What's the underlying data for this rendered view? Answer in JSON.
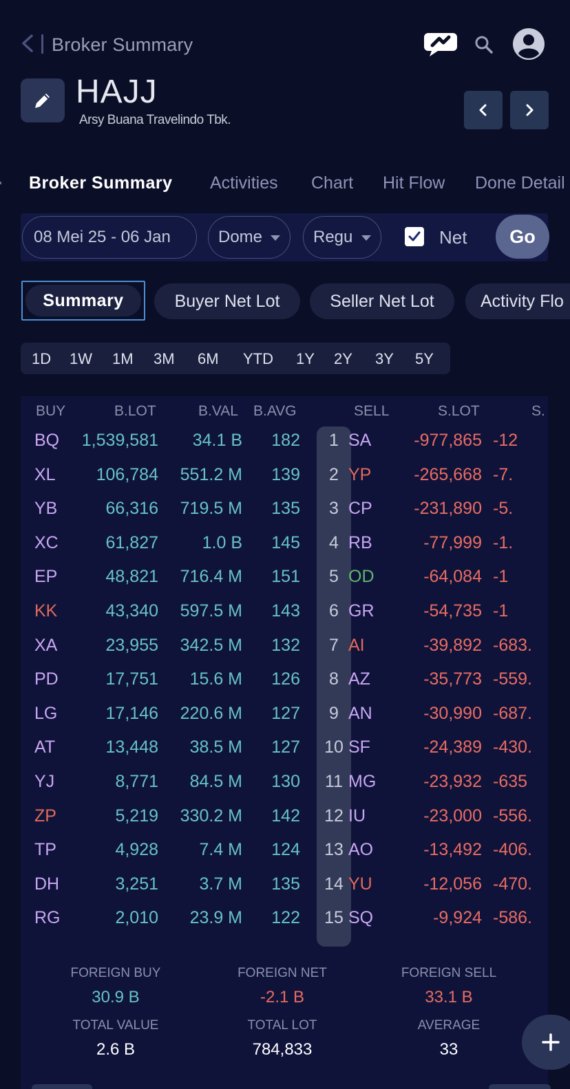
{
  "header": {
    "title": "Broker Summary",
    "ticker": "HAJJ",
    "company": "Arsy Buana Travelindo Tbk."
  },
  "tabs": [
    {
      "label": "Broker Summary",
      "active": true
    },
    {
      "label": "Activities"
    },
    {
      "label": "Chart"
    },
    {
      "label": "Hit Flow"
    },
    {
      "label": "Done Detail"
    }
  ],
  "filters": {
    "date_range": "08 Mei 25 - 06 Jan",
    "market": "Dome",
    "board": "Regu",
    "net_checked": true,
    "net_label": "Net",
    "go_label": "Go"
  },
  "views": [
    {
      "label": "Summary",
      "active": true
    },
    {
      "label": "Buyer Net Lot"
    },
    {
      "label": "Seller Net Lot"
    },
    {
      "label": "Activity Flo"
    }
  ],
  "periods": [
    "1D",
    "1W",
    "1M",
    "3M",
    "6M",
    "YTD",
    "1Y",
    "2Y",
    "3Y",
    "5Y"
  ],
  "table": {
    "columns": {
      "buy": "BUY",
      "blot": "B.LOT",
      "bval": "B.VAL",
      "bavg": "B.AVG",
      "sell": "SELL",
      "slot": "S.LOT",
      "sval": "S."
    },
    "rows": [
      {
        "rank": "1",
        "buy": "BQ",
        "blot": "1,539,581",
        "bval": "34.1 B",
        "bavg": "182",
        "sell": "SA",
        "slot": "-977,865",
        "sval": "-12"
      },
      {
        "rank": "2",
        "buy": "XL",
        "blot": "106,784",
        "bval": "551.2 M",
        "bavg": "139",
        "sell": "YP",
        "slot": "-265,668",
        "sval": "-7."
      },
      {
        "rank": "3",
        "buy": "YB",
        "blot": "66,316",
        "bval": "719.5 M",
        "bavg": "135",
        "sell": "CP",
        "slot": "-231,890",
        "sval": "-5."
      },
      {
        "rank": "4",
        "buy": "XC",
        "blot": "61,827",
        "bval": "1.0 B",
        "bavg": "145",
        "sell": "RB",
        "slot": "-77,999",
        "sval": "-1."
      },
      {
        "rank": "5",
        "buy": "EP",
        "blot": "48,821",
        "bval": "716.4 M",
        "bavg": "151",
        "sell": "OD",
        "slot": "-64,084",
        "sval": "-1"
      },
      {
        "rank": "6",
        "buy": "KK",
        "blot": "43,340",
        "bval": "597.5 M",
        "bavg": "143",
        "sell": "GR",
        "slot": "-54,735",
        "sval": "-1"
      },
      {
        "rank": "7",
        "buy": "XA",
        "blot": "23,955",
        "bval": "342.5 M",
        "bavg": "132",
        "sell": "AI",
        "slot": "-39,892",
        "sval": "-683."
      },
      {
        "rank": "8",
        "buy": "PD",
        "blot": "17,751",
        "bval": "15.6 M",
        "bavg": "126",
        "sell": "AZ",
        "slot": "-35,773",
        "sval": "-559."
      },
      {
        "rank": "9",
        "buy": "LG",
        "blot": "17,146",
        "bval": "220.6 M",
        "bavg": "127",
        "sell": "AN",
        "slot": "-30,990",
        "sval": "-687."
      },
      {
        "rank": "10",
        "buy": "AT",
        "blot": "13,448",
        "bval": "38.5 M",
        "bavg": "127",
        "sell": "SF",
        "slot": "-24,389",
        "sval": "-430."
      },
      {
        "rank": "11",
        "buy": "YJ",
        "blot": "8,771",
        "bval": "84.5 M",
        "bavg": "130",
        "sell": "MG",
        "slot": "-23,932",
        "sval": "-635"
      },
      {
        "rank": "12",
        "buy": "ZP",
        "blot": "5,219",
        "bval": "330.2 M",
        "bavg": "142",
        "sell": "IU",
        "slot": "-23,000",
        "sval": "-556."
      },
      {
        "rank": "13",
        "buy": "TP",
        "blot": "4,928",
        "bval": "7.4 M",
        "bavg": "124",
        "sell": "AO",
        "slot": "-13,492",
        "sval": "-406."
      },
      {
        "rank": "14",
        "buy": "DH",
        "blot": "3,251",
        "bval": "3.7 M",
        "bavg": "135",
        "sell": "YU",
        "slot": "-12,056",
        "sval": "-470."
      },
      {
        "rank": "15",
        "buy": "RG",
        "blot": "2,010",
        "bval": "23.9 M",
        "bavg": "122",
        "sell": "SQ",
        "slot": "-9,924",
        "sval": "-586."
      }
    ],
    "buy_colors": [
      "purple",
      "purple",
      "purple",
      "purple",
      "purple",
      "red",
      "purple",
      "purple",
      "purple",
      "purple",
      "purple",
      "red",
      "purple",
      "purple",
      "purple"
    ],
    "sell_colors": [
      "purple",
      "red",
      "purple",
      "purple",
      "green",
      "purple",
      "red",
      "purple",
      "purple",
      "purple",
      "purple",
      "purple",
      "purple",
      "red",
      "purple"
    ]
  },
  "summary": {
    "foreign_buy_label": "FOREIGN BUY",
    "foreign_buy": "30.9 B",
    "foreign_net_label": "FOREIGN NET",
    "foreign_net": "-2.1 B",
    "foreign_sell_label": "FOREIGN SELL",
    "foreign_sell": "33.1 B",
    "total_value_label": "TOTAL VALUE",
    "total_value": "2.6 B",
    "total_lot_label": "TOTAL LOT",
    "total_lot": "784,833",
    "average_label": "AVERAGE",
    "average": "33"
  },
  "colors": {
    "background": "#0b0e27",
    "buy_value": "#67c2c5",
    "sell_value": "#ea6c62",
    "broker_code": "#c9a6f2",
    "broker_foreign": "#e06a5a",
    "broker_gov": "#5fb86a",
    "selected_border": "#4c8fd3"
  },
  "icons": [
    "back-icon",
    "chat-icon",
    "search-icon",
    "avatar-icon",
    "edit-icon",
    "chevron-left-icon",
    "chevron-right-icon",
    "check-icon",
    "plus-icon"
  ]
}
